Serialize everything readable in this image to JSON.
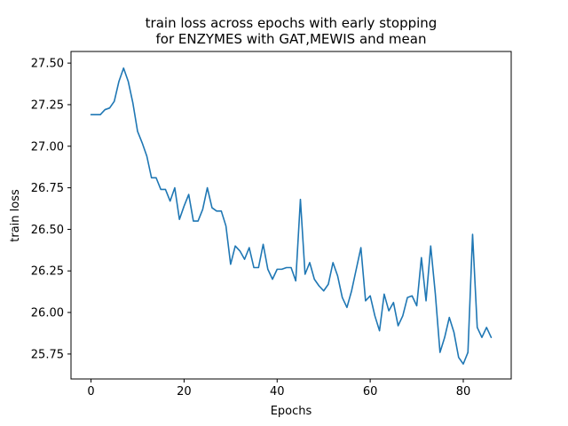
{
  "chart_data": {
    "type": "line",
    "title_lines": [
      "train loss across epochs with early stopping",
      "for ENZYMES with GAT,MEWIS and mean"
    ],
    "xlabel": "Epochs",
    "ylabel": "train loss",
    "xlim": [
      -4.3,
      90.3
    ],
    "ylim": [
      25.6,
      27.57
    ],
    "xticks": [
      0,
      20,
      40,
      60,
      80
    ],
    "yticks": [
      25.75,
      26.0,
      26.25,
      26.5,
      26.75,
      27.0,
      27.25,
      27.5
    ],
    "ytick_labels": [
      "25.75",
      "26.00",
      "26.25",
      "26.50",
      "26.75",
      "27.00",
      "27.25",
      "27.50"
    ],
    "grid": false,
    "line_color": "#1f77b4",
    "series": [
      {
        "x": [
          0,
          1,
          2,
          3,
          4,
          5,
          6,
          7,
          8,
          9,
          10,
          11,
          12,
          13,
          14,
          15,
          16,
          17,
          18,
          19,
          20,
          21,
          22,
          23,
          24,
          25,
          26,
          27,
          28,
          29,
          30,
          31,
          32,
          33,
          34,
          35,
          36,
          37,
          38,
          39,
          40,
          41,
          42,
          43,
          44,
          45,
          46,
          47,
          48,
          49,
          50,
          51,
          52,
          53,
          54,
          55,
          56,
          57,
          58,
          59,
          60,
          61,
          62,
          63,
          64,
          65,
          66,
          67,
          68,
          69,
          70,
          71,
          72,
          73,
          74,
          75,
          76,
          77,
          78,
          79,
          80,
          81,
          82,
          83,
          84,
          85,
          86
        ],
        "y": [
          27.19,
          27.19,
          27.19,
          27.22,
          27.23,
          27.27,
          27.39,
          27.47,
          27.39,
          27.26,
          27.09,
          27.02,
          26.94,
          26.81,
          26.81,
          26.74,
          26.74,
          26.67,
          26.75,
          26.56,
          26.64,
          26.71,
          26.55,
          26.55,
          26.62,
          26.75,
          26.63,
          26.61,
          26.61,
          26.52,
          26.29,
          26.4,
          26.37,
          26.32,
          26.39,
          26.27,
          26.27,
          26.41,
          26.26,
          26.2,
          26.26,
          26.26,
          26.27,
          26.27,
          26.19,
          26.68,
          26.23,
          26.3,
          26.2,
          26.16,
          26.13,
          26.17,
          26.3,
          26.22,
          26.09,
          26.03,
          26.13,
          26.26,
          26.39,
          26.07,
          26.1,
          25.98,
          25.89,
          26.11,
          26.01,
          26.06,
          25.92,
          25.98,
          26.09,
          26.1,
          26.04,
          26.33,
          26.07,
          26.4,
          26.11,
          25.76,
          25.85,
          25.97,
          25.88,
          25.73,
          25.69,
          25.76,
          26.47,
          25.91,
          25.85,
          25.91,
          25.85
        ]
      }
    ]
  }
}
